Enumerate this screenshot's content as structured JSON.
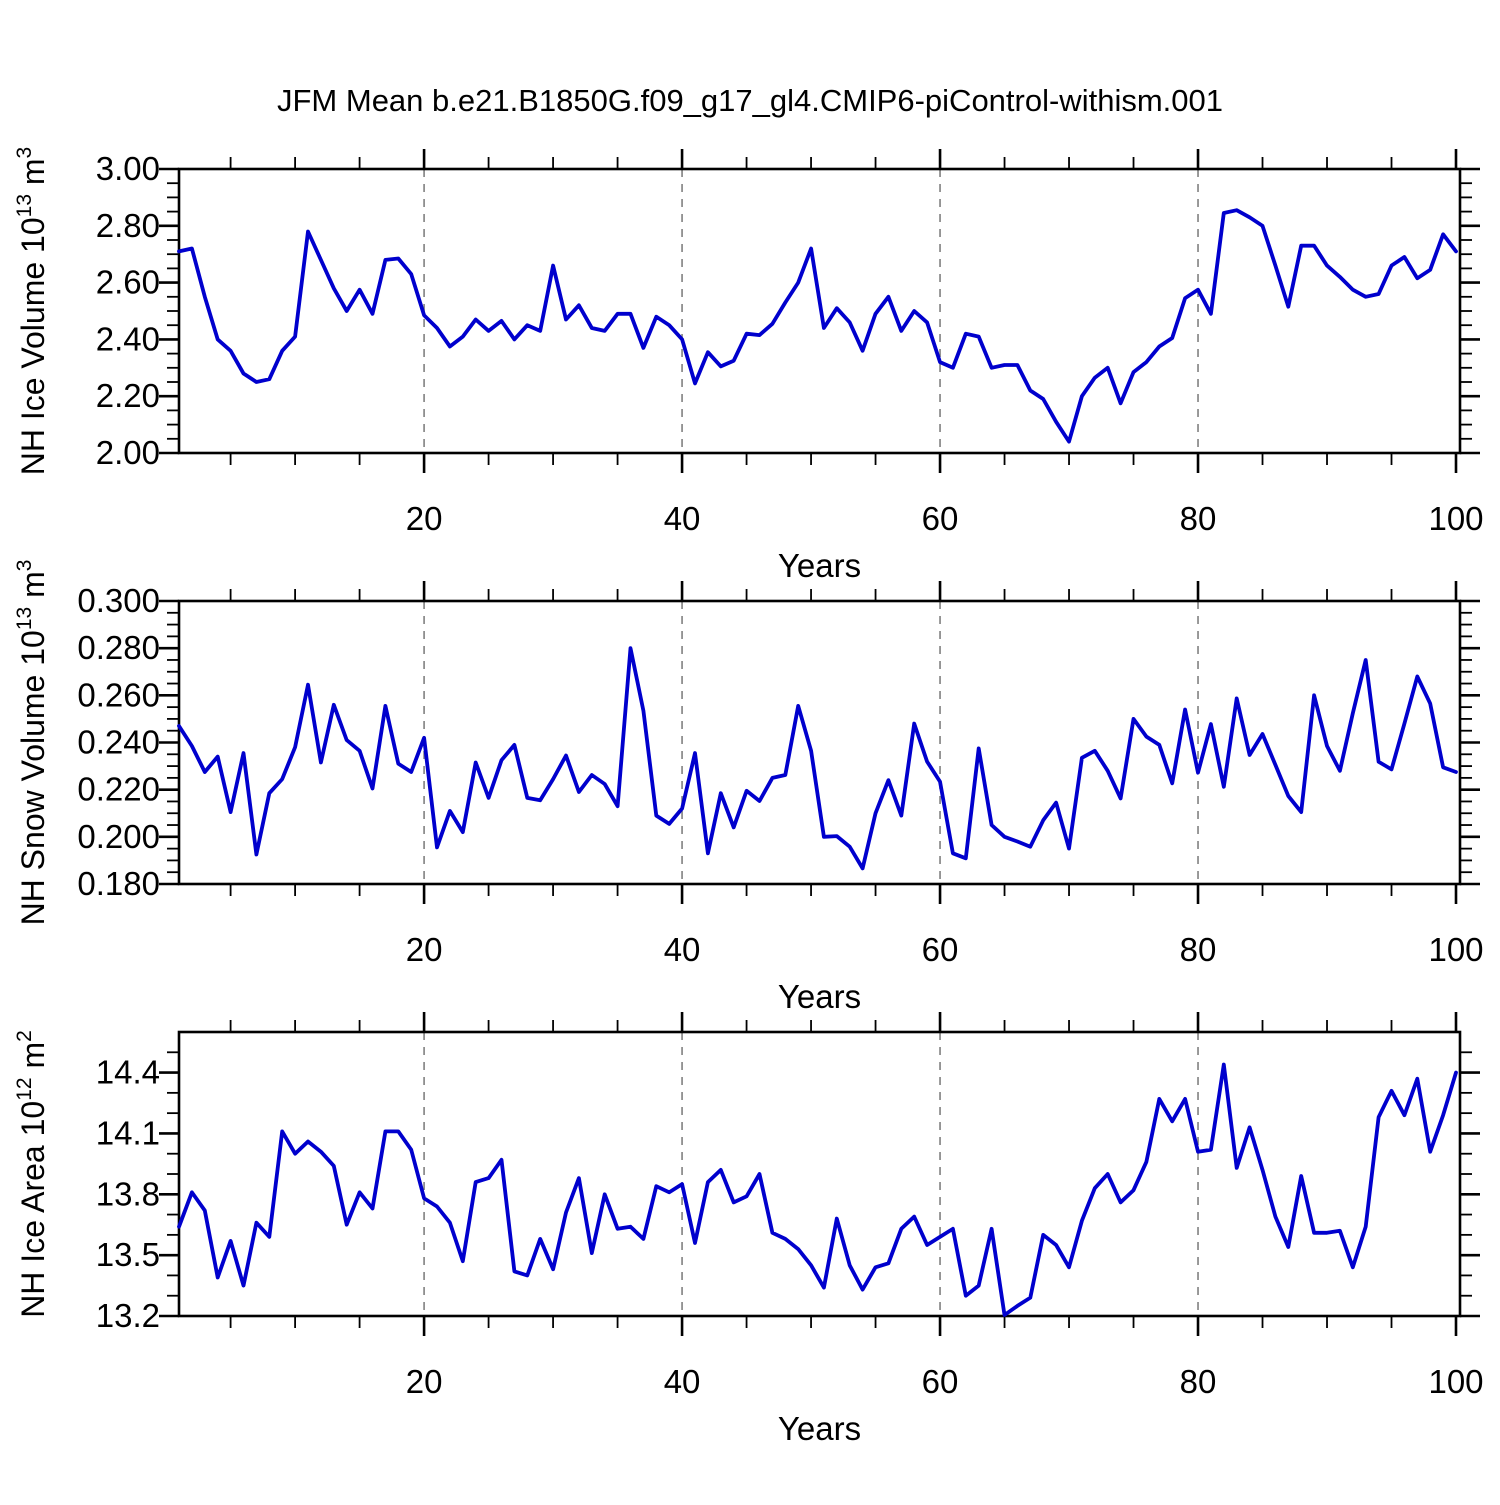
{
  "title": "JFM Mean b.e21.B1850G.f09_g17_gl4.CMIP6-piControl-withism.001",
  "line_color": "#0000cd",
  "grid_color": "#808080",
  "xaxis": {
    "label": "Years",
    "min": 1,
    "max": 100,
    "major_ticks": [
      20,
      40,
      60,
      80,
      100
    ],
    "major_labels": [
      "20",
      "40",
      "60",
      "80",
      "100"
    ],
    "minor_ticks": [
      5,
      10,
      15,
      25,
      30,
      35,
      45,
      50,
      55,
      65,
      70,
      75,
      85,
      90,
      95
    ],
    "gridlines": [
      20,
      40,
      60,
      80
    ]
  },
  "chart_data": [
    {
      "type": "line",
      "name": "nh-ice-volume",
      "ylabel": {
        "text": "NH Ice Volume 10",
        "sup": "13",
        "text2": " m",
        "sup2": "3"
      },
      "ylabel_plain": "NH Ice Volume 10^13 m^3",
      "xlabel": "Years",
      "ylim": [
        2.0,
        3.0
      ],
      "ytick_values": [
        2.0,
        2.2,
        2.4,
        2.6,
        2.8,
        3.0
      ],
      "ytick_labels": [
        "2.00",
        "2.20",
        "2.40",
        "2.60",
        "2.80",
        "3.00"
      ],
      "yminor_values": [
        2.05,
        2.1,
        2.15,
        2.25,
        2.3,
        2.35,
        2.45,
        2.5,
        2.55,
        2.65,
        2.7,
        2.75,
        2.85,
        2.9,
        2.95
      ],
      "x_start": 1,
      "values": [
        2.71,
        2.72,
        2.55,
        2.4,
        2.36,
        2.28,
        2.25,
        2.26,
        2.36,
        2.41,
        2.78,
        2.68,
        2.58,
        2.5,
        2.575,
        2.49,
        2.68,
        2.685,
        2.63,
        2.485,
        2.44,
        2.375,
        2.41,
        2.47,
        2.43,
        2.465,
        2.4,
        2.45,
        2.43,
        2.66,
        2.47,
        2.52,
        2.44,
        2.43,
        2.49,
        2.49,
        2.37,
        2.48,
        2.45,
        2.4,
        2.245,
        2.355,
        2.305,
        2.325,
        2.42,
        2.415,
        2.455,
        2.53,
        2.6,
        2.72,
        2.44,
        2.51,
        2.46,
        2.36,
        2.49,
        2.55,
        2.43,
        2.5,
        2.46,
        2.32,
        2.3,
        2.42,
        2.41,
        2.3,
        2.31,
        2.31,
        2.22,
        2.19,
        2.11,
        2.04,
        2.2,
        2.265,
        2.3,
        2.175,
        2.285,
        2.32,
        2.375,
        2.405,
        2.545,
        2.575,
        2.49,
        2.845,
        2.855,
        2.83,
        2.8,
        2.66,
        2.515,
        2.73,
        2.73,
        2.66,
        2.62,
        2.575,
        2.55,
        2.56,
        2.66,
        2.69,
        2.615,
        2.645,
        2.77,
        2.71
      ]
    },
    {
      "type": "line",
      "name": "nh-snow-volume",
      "ylabel": {
        "text": "NH Snow Volume 10",
        "sup": "13",
        "text2": " m",
        "sup2": "3"
      },
      "ylabel_plain": "NH Snow Volume 10^13 m^3",
      "xlabel": "Years",
      "ylim": [
        0.18,
        0.3
      ],
      "ytick_values": [
        0.18,
        0.2,
        0.22,
        0.24,
        0.26,
        0.28,
        0.3
      ],
      "ytick_labels": [
        "0.180",
        "0.200",
        "0.220",
        "0.240",
        "0.260",
        "0.280",
        "0.300"
      ],
      "yminor_values": [
        0.185,
        0.19,
        0.195,
        0.205,
        0.21,
        0.215,
        0.225,
        0.23,
        0.235,
        0.245,
        0.25,
        0.255,
        0.265,
        0.27,
        0.275,
        0.285,
        0.29,
        0.295
      ],
      "x_start": 1,
      "values": [
        0.247,
        0.2385,
        0.2275,
        0.234,
        0.2105,
        0.2355,
        0.1925,
        0.2185,
        0.2245,
        0.238,
        0.2645,
        0.2315,
        0.256,
        0.241,
        0.2365,
        0.2205,
        0.2555,
        0.231,
        0.2275,
        0.242,
        0.1955,
        0.211,
        0.202,
        0.2315,
        0.2165,
        0.2325,
        0.239,
        0.2165,
        0.2155,
        0.2245,
        0.2345,
        0.219,
        0.2262,
        0.2224,
        0.213,
        0.28,
        0.2535,
        0.209,
        0.2055,
        0.212,
        0.2355,
        0.193,
        0.2185,
        0.204,
        0.2195,
        0.2152,
        0.225,
        0.2262,
        0.2555,
        0.2365,
        0.2,
        0.2003,
        0.1958,
        0.1866,
        0.21,
        0.224,
        0.209,
        0.248,
        0.2319,
        0.2234,
        0.193,
        0.1909,
        0.2375,
        0.205,
        0.2,
        0.198,
        0.1958,
        0.207,
        0.2145,
        0.195,
        0.2335,
        0.2365,
        0.228,
        0.2163,
        0.25,
        0.2425,
        0.239,
        0.2227,
        0.254,
        0.2272,
        0.2478,
        0.2212,
        0.2587,
        0.2347,
        0.2436,
        0.2305,
        0.2173,
        0.2105,
        0.26,
        0.2385,
        0.228,
        0.2524,
        0.275,
        0.2318,
        0.2286,
        0.248,
        0.268,
        0.2565,
        0.2295,
        0.2275
      ]
    },
    {
      "type": "line",
      "name": "nh-ice-area",
      "ylabel": {
        "text": "NH Ice Area 10",
        "sup": "12",
        "text2": " m",
        "sup2": "2"
      },
      "ylabel_plain": "NH Ice Area 10^12 m^2",
      "xlabel": "Years",
      "ylim": [
        13.2,
        14.6
      ],
      "ytick_values": [
        13.2,
        13.5,
        13.8,
        14.1,
        14.4
      ],
      "ytick_labels": [
        "13.2",
        "13.5",
        "13.8",
        "14.1",
        "14.4"
      ],
      "yminor_values": [
        13.3,
        13.4,
        13.6,
        13.7,
        13.9,
        14.0,
        14.2,
        14.3,
        14.5
      ],
      "x_start": 1,
      "values": [
        13.64,
        13.81,
        13.72,
        13.39,
        13.57,
        13.35,
        13.66,
        13.59,
        14.11,
        14.0,
        14.06,
        14.01,
        13.94,
        13.65,
        13.81,
        13.73,
        14.11,
        14.11,
        14.02,
        13.78,
        13.74,
        13.66,
        13.47,
        13.86,
        13.88,
        13.97,
        13.42,
        13.4,
        13.58,
        13.43,
        13.71,
        13.88,
        13.51,
        13.8,
        13.63,
        13.64,
        13.58,
        13.84,
        13.81,
        13.85,
        13.56,
        13.86,
        13.92,
        13.76,
        13.79,
        13.9,
        13.61,
        13.58,
        13.53,
        13.45,
        13.34,
        13.68,
        13.45,
        13.33,
        13.44,
        13.46,
        13.63,
        13.69,
        13.55,
        13.59,
        13.63,
        13.3,
        13.35,
        13.63,
        13.205,
        13.25,
        13.29,
        13.6,
        13.55,
        13.44,
        13.67,
        13.83,
        13.9,
        13.76,
        13.82,
        13.96,
        14.27,
        14.16,
        14.27,
        14.01,
        14.02,
        14.44,
        13.93,
        14.13,
        13.92,
        13.69,
        13.54,
        13.89,
        13.61,
        13.61,
        13.62,
        13.44,
        13.64,
        14.18,
        14.31,
        14.19,
        14.37,
        14.01,
        14.19,
        14.4
      ]
    }
  ]
}
